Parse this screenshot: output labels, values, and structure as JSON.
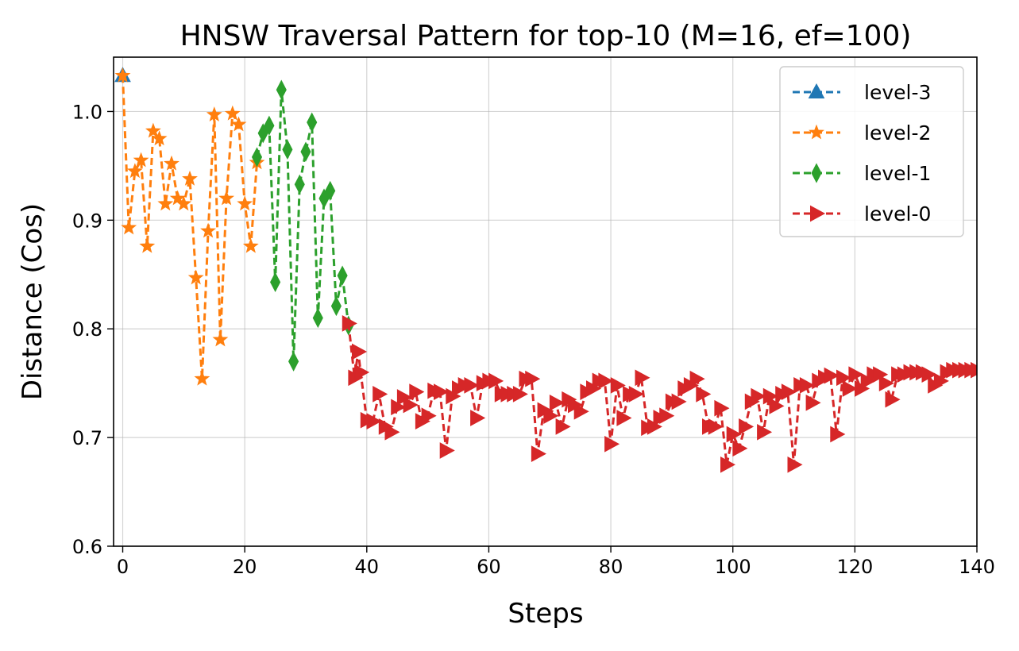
{
  "chart_data": {
    "type": "line",
    "title": "HNSW Traversal Pattern for top-10 (M=16, ef=100)",
    "xlabel": "Steps",
    "ylabel": "Distance (Cos)",
    "xlim": [
      -1.5,
      140
    ],
    "ylim": [
      0.6,
      1.05
    ],
    "xticks": [
      0,
      20,
      40,
      60,
      80,
      100,
      120,
      140
    ],
    "yticks": [
      0.6,
      0.7,
      0.8,
      0.9,
      1.0
    ],
    "xtick_labels": [
      "0",
      "20",
      "40",
      "60",
      "80",
      "100",
      "120",
      "140"
    ],
    "ytick_labels": [
      "0.6",
      "0.7",
      "0.8",
      "0.9",
      "1.0"
    ],
    "grid": true,
    "legend_position": "top-right",
    "series": [
      {
        "name": "level-3",
        "color": "#1f77b4",
        "marker": "triangle-up",
        "x": [
          0
        ],
        "y": [
          1.033
        ]
      },
      {
        "name": "level-2",
        "color": "#ff7f0e",
        "marker": "star",
        "x": [
          0,
          1,
          2,
          3,
          4,
          5,
          6,
          7,
          8,
          9,
          10,
          11,
          12,
          13,
          14,
          15,
          16,
          17,
          18,
          19,
          20,
          21,
          22
        ],
        "y": [
          1.033,
          0.893,
          0.945,
          0.955,
          0.876,
          0.982,
          0.975,
          0.915,
          0.952,
          0.92,
          0.915,
          0.938,
          0.847,
          0.754,
          0.89,
          0.997,
          0.79,
          0.92,
          0.998,
          0.988,
          0.915,
          0.876,
          0.953
        ]
      },
      {
        "name": "level-1",
        "color": "#2ca02c",
        "marker": "thin-diamond",
        "x": [
          22,
          23,
          24,
          25,
          26,
          27,
          28,
          29,
          30,
          31,
          32,
          33,
          34,
          35,
          36,
          37
        ],
        "y": [
          0.958,
          0.98,
          0.987,
          0.843,
          1.02,
          0.965,
          0.77,
          0.933,
          0.963,
          0.99,
          0.81,
          0.92,
          0.927,
          0.821,
          0.849,
          0.803
        ]
      },
      {
        "name": "level-0",
        "color": "#d62728",
        "marker": "triangle-right",
        "x": [
          37,
          38,
          38.6,
          39,
          40,
          41,
          42,
          43,
          44,
          45,
          46,
          47,
          48,
          49,
          50,
          51,
          52,
          53,
          54,
          55,
          56,
          57,
          58,
          59,
          60,
          61,
          62,
          63,
          64,
          65,
          66,
          67,
          68,
          69,
          70,
          71,
          72,
          73,
          74,
          75,
          76,
          77,
          78,
          79,
          80,
          81,
          82,
          83,
          84,
          85,
          86,
          87,
          88,
          89,
          90,
          91,
          92,
          93,
          94,
          95,
          96,
          97,
          98,
          99,
          100,
          101,
          102,
          103,
          104,
          105,
          106,
          107,
          108,
          109,
          110,
          111,
          112,
          113,
          114,
          115,
          116,
          117,
          118,
          119,
          120,
          121,
          122,
          123,
          124,
          125,
          126,
          127,
          128,
          129,
          130,
          131,
          132,
          133,
          134,
          135,
          136,
          137,
          138,
          139,
          140
        ],
        "y": [
          0.805,
          0.755,
          0.779,
          0.76,
          0.716,
          0.715,
          0.74,
          0.71,
          0.705,
          0.728,
          0.737,
          0.73,
          0.742,
          0.715,
          0.72,
          0.743,
          0.742,
          0.688,
          0.738,
          0.745,
          0.748,
          0.748,
          0.718,
          0.75,
          0.752,
          0.752,
          0.74,
          0.74,
          0.74,
          0.74,
          0.754,
          0.754,
          0.685,
          0.725,
          0.72,
          0.732,
          0.71,
          0.735,
          0.73,
          0.724,
          0.742,
          0.745,
          0.752,
          0.752,
          0.694,
          0.748,
          0.718,
          0.74,
          0.74,
          0.755,
          0.709,
          0.71,
          0.718,
          0.72,
          0.733,
          0.733,
          0.745,
          0.748,
          0.754,
          0.74,
          0.71,
          0.71,
          0.727,
          0.675,
          0.703,
          0.69,
          0.71,
          0.733,
          0.738,
          0.705,
          0.738,
          0.729,
          0.74,
          0.742,
          0.675,
          0.748,
          0.748,
          0.732,
          0.752,
          0.755,
          0.757,
          0.703,
          0.755,
          0.745,
          0.758,
          0.745,
          0.752,
          0.758,
          0.758,
          0.75,
          0.735,
          0.758,
          0.758,
          0.76,
          0.76,
          0.76,
          0.758,
          0.748,
          0.752,
          0.76,
          0.762,
          0.762,
          0.762,
          0.762,
          0.762
        ]
      }
    ]
  }
}
